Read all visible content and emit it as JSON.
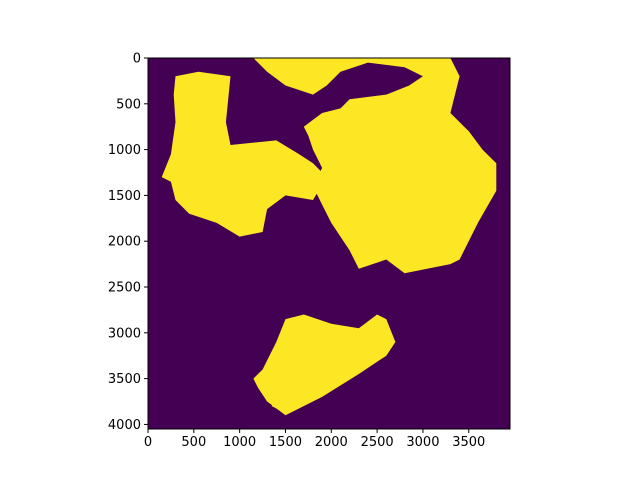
{
  "chart_data": {
    "type": "heatmap",
    "title": "",
    "xlabel": "",
    "ylabel": "",
    "xlim": [
      0,
      3950
    ],
    "ylim": [
      4050,
      0
    ],
    "x_ticks": [
      0,
      500,
      1000,
      1500,
      2000,
      2500,
      3000,
      3500
    ],
    "y_ticks": [
      0,
      500,
      1000,
      1500,
      2000,
      2500,
      3000,
      3500,
      4000
    ],
    "x_tick_labels": [
      "0",
      "500",
      "1000",
      "1500",
      "2000",
      "2500",
      "3000",
      "3500"
    ],
    "y_tick_labels": [
      "0",
      "500",
      "1000",
      "1500",
      "2000",
      "2500",
      "3000",
      "3500",
      "4000"
    ],
    "colormap": "viridis",
    "value_colors": {
      "0": "#440154",
      "1": "#fde725"
    },
    "description_values": "binary mask: 1 = yellow regions, 0 = purple background",
    "regions_value_1": [
      {
        "polygon": [
          [
            300,
            200
          ],
          [
            550,
            150
          ],
          [
            900,
            200
          ],
          [
            850,
            700
          ],
          [
            900,
            950
          ],
          [
            1400,
            900
          ],
          [
            1650,
            1050
          ],
          [
            1800,
            1150
          ],
          [
            1950,
            1300
          ],
          [
            1800,
            1550
          ],
          [
            1500,
            1500
          ],
          [
            1300,
            1650
          ],
          [
            1250,
            1900
          ],
          [
            1000,
            1950
          ],
          [
            750,
            1800
          ],
          [
            450,
            1700
          ],
          [
            300,
            1550
          ],
          [
            250,
            1350
          ],
          [
            150,
            1300
          ],
          [
            250,
            1050
          ],
          [
            300,
            700
          ],
          [
            280,
            400
          ]
        ]
      },
      {
        "polygon": [
          [
            1150,
            0
          ],
          [
            3300,
            0
          ],
          [
            3400,
            200
          ],
          [
            3300,
            600
          ],
          [
            3500,
            800
          ],
          [
            3650,
            1000
          ],
          [
            3800,
            1150
          ],
          [
            3800,
            1450
          ],
          [
            3600,
            1800
          ],
          [
            3400,
            2200
          ],
          [
            3300,
            2250
          ],
          [
            2800,
            2350
          ],
          [
            2600,
            2200
          ],
          [
            2300,
            2300
          ],
          [
            2200,
            2100
          ],
          [
            2000,
            1800
          ],
          [
            1900,
            1600
          ],
          [
            1800,
            1400
          ],
          [
            1900,
            1200
          ],
          [
            1800,
            1000
          ],
          [
            1750,
            850
          ],
          [
            1700,
            750
          ],
          [
            1900,
            600
          ],
          [
            2100,
            550
          ],
          [
            2200,
            450
          ],
          [
            2600,
            400
          ],
          [
            2850,
            300
          ],
          [
            3000,
            200
          ],
          [
            2800,
            100
          ],
          [
            2400,
            50
          ],
          [
            2100,
            150
          ],
          [
            1950,
            300
          ],
          [
            1800,
            400
          ],
          [
            1500,
            300
          ],
          [
            1300,
            150
          ]
        ]
      },
      {
        "polygon": [
          [
            1500,
            2850
          ],
          [
            1700,
            2800
          ],
          [
            2000,
            2900
          ],
          [
            2300,
            2950
          ],
          [
            2500,
            2800
          ],
          [
            2600,
            2850
          ],
          [
            2700,
            3100
          ],
          [
            2600,
            3250
          ],
          [
            2300,
            3450
          ],
          [
            1900,
            3700
          ],
          [
            1500,
            3900
          ],
          [
            1300,
            3750
          ],
          [
            1200,
            3600
          ],
          [
            1150,
            3500
          ],
          [
            1250,
            3400
          ],
          [
            1400,
            3100
          ]
        ]
      },
      {
        "polygon": [
          [
            1400,
            3700
          ],
          [
            1500,
            3750
          ],
          [
            1450,
            3850
          ],
          [
            1350,
            3800
          ]
        ]
      }
    ]
  }
}
